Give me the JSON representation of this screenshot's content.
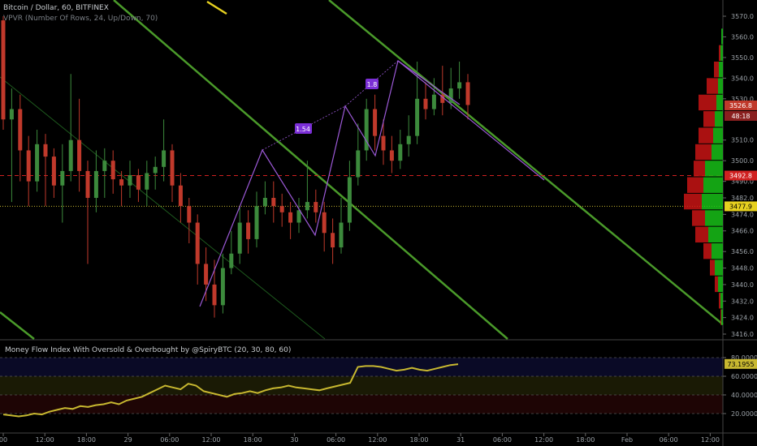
{
  "header": {
    "title": "Bitcoin / Dollar, 60, BITFINEX",
    "vpvr_legend": "VPVR (Number Of Rows, 24, Up/Down, 70)",
    "mfi_legend": "Money Flow Index With Oversold & Overbought by @SpiryBTC (20, 30, 80, 60)"
  },
  "price_axis": {
    "ticks": [
      "3570.0",
      "3560.0",
      "3550.0",
      "3540.0",
      "3530.0",
      "3510.0",
      "3500.0",
      "3490.0",
      "3482.0",
      "3474.0",
      "3466.0",
      "3456.0",
      "3448.0",
      "3440.0",
      "3432.0",
      "3424.0",
      "3416.0"
    ],
    "tick_values": [
      3570,
      3560,
      3550,
      3540,
      3530,
      3510,
      3500,
      3490,
      3482,
      3474,
      3466,
      3456,
      3448,
      3440,
      3432,
      3424,
      3416
    ],
    "current_price_tag": "3526.8",
    "countdown_tag": "48:18",
    "red_line_tag": "3492.8",
    "yellow_line_tag": "3477.9",
    "current_price": 3526.8,
    "red_line": 3492.8,
    "yellow_line": 3477.9
  },
  "mfi_axis": {
    "ticks": [
      "80.0000",
      "60.0000",
      "40.0000",
      "20.0000"
    ],
    "tick_values": [
      80,
      60,
      40,
      20
    ],
    "value_tag": "73.1955",
    "value": 73.1955
  },
  "time_axis": {
    "labels": [
      "00",
      "12:00",
      "18:00",
      "29",
      "06:00",
      "12:00",
      "18:00",
      "30",
      "06:00",
      "12:00",
      "18:00",
      "31",
      "06:00",
      "12:00",
      "18:00",
      "Feb",
      "06:00",
      "12:00"
    ]
  },
  "fib_labels": [
    "1.54",
    "1.8"
  ],
  "colors": {
    "up": "#3c8a3c",
    "down": "#c0392b",
    "channel": "#4a9a2a",
    "zigzag": "#9b59d6",
    "mfi_line": "#c8b830",
    "overbought_zone": "#0a0a26",
    "mid_zone": "#1a1a05",
    "oversold_zone": "#1e0505",
    "vpvr_up": "#18c018",
    "vpvr_down": "#c81414"
  }
}
